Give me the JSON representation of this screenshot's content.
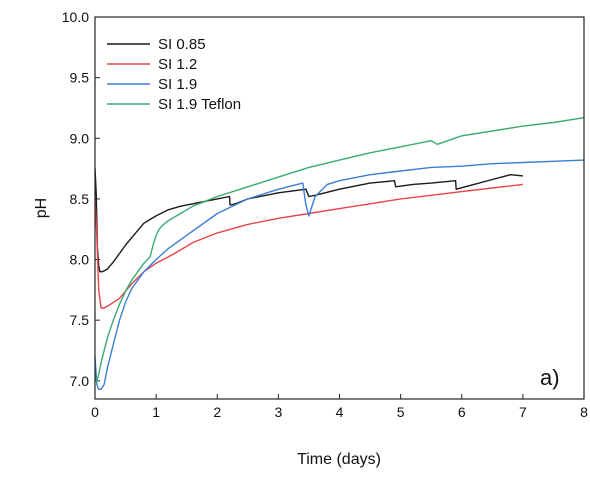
{
  "chart_data": {
    "type": "line",
    "title": "",
    "xlabel": "Time (days)",
    "ylabel": "pH",
    "xlim": [
      0,
      8
    ],
    "ylim": [
      6.85,
      10.0
    ],
    "x_ticks": [
      "0",
      "1",
      "2",
      "3",
      "4",
      "5",
      "6",
      "7",
      "8"
    ],
    "y_ticks": [
      "7.0",
      "7.5",
      "8.0",
      "8.5",
      "9.0",
      "9.5",
      "10.0"
    ],
    "grid": false,
    "legend_position": "top-left",
    "annotation": "a)",
    "series": [
      {
        "name": "SI 0.85",
        "color": "#1a1a1a",
        "x": [
          0,
          0.02,
          0.04,
          0.06,
          0.08,
          0.12,
          0.2,
          0.3,
          0.4,
          0.5,
          0.6,
          0.7,
          0.8,
          0.9,
          1.0,
          1.2,
          1.4,
          1.6,
          1.8,
          2.0,
          2.2,
          2.21,
          2.3,
          2.5,
          3.0,
          3.45,
          3.5,
          3.6,
          4.0,
          4.5,
          4.9,
          4.92,
          5.2,
          5.5,
          5.9,
          5.91,
          6.2,
          6.5,
          6.8,
          7.0
        ],
        "y": [
          8.75,
          8.55,
          8.1,
          7.95,
          7.9,
          7.9,
          7.92,
          7.98,
          8.05,
          8.12,
          8.18,
          8.24,
          8.3,
          8.33,
          8.36,
          8.41,
          8.44,
          8.46,
          8.48,
          8.5,
          8.52,
          8.45,
          8.46,
          8.5,
          8.55,
          8.58,
          8.52,
          8.53,
          8.58,
          8.63,
          8.65,
          8.6,
          8.62,
          8.63,
          8.65,
          8.58,
          8.62,
          8.66,
          8.7,
          8.69
        ]
      },
      {
        "name": "SI 1.2",
        "color": "#e8454a",
        "x": [
          0,
          0.03,
          0.06,
          0.1,
          0.15,
          0.25,
          0.4,
          0.6,
          0.8,
          1.0,
          1.3,
          1.6,
          2.0,
          2.5,
          3.0,
          3.5,
          4.0,
          4.5,
          5.0,
          5.5,
          6.0,
          6.5,
          7.0
        ],
        "y": [
          8.5,
          8.2,
          7.75,
          7.6,
          7.6,
          7.63,
          7.68,
          7.8,
          7.9,
          7.97,
          8.05,
          8.14,
          8.22,
          8.29,
          8.34,
          8.38,
          8.42,
          8.46,
          8.5,
          8.53,
          8.56,
          8.59,
          8.62
        ]
      },
      {
        "name": "SI 1.9",
        "color": "#3b7fd4",
        "x": [
          0,
          0.03,
          0.06,
          0.1,
          0.15,
          0.2,
          0.3,
          0.4,
          0.5,
          0.6,
          0.8,
          1.0,
          1.2,
          1.5,
          2.0,
          2.5,
          3.0,
          3.4,
          3.45,
          3.5,
          3.6,
          3.8,
          4.0,
          4.5,
          5.0,
          5.5,
          6.0,
          6.5,
          7.0,
          7.5,
          8.0
        ],
        "y": [
          7.2,
          6.97,
          6.93,
          6.93,
          6.97,
          7.1,
          7.3,
          7.5,
          7.65,
          7.76,
          7.9,
          8.0,
          8.09,
          8.2,
          8.38,
          8.5,
          8.58,
          8.63,
          8.45,
          8.36,
          8.52,
          8.62,
          8.65,
          8.7,
          8.73,
          8.76,
          8.77,
          8.79,
          8.8,
          8.81,
          8.82
        ]
      },
      {
        "name": "SI 1.9 Teflon",
        "color": "#3aaa73",
        "x": [
          0,
          0.03,
          0.06,
          0.1,
          0.2,
          0.3,
          0.4,
          0.5,
          0.6,
          0.7,
          0.8,
          0.9,
          0.95,
          1.0,
          1.05,
          1.1,
          1.2,
          1.4,
          1.6,
          2.0,
          2.5,
          3.0,
          3.5,
          4.0,
          4.5,
          5.0,
          5.5,
          5.6,
          6.0,
          6.5,
          7.0,
          7.5,
          8.0
        ],
        "y": [
          7.05,
          7.0,
          7.05,
          7.15,
          7.35,
          7.5,
          7.63,
          7.74,
          7.83,
          7.9,
          7.97,
          8.02,
          8.12,
          8.2,
          8.25,
          8.28,
          8.32,
          8.38,
          8.44,
          8.52,
          8.6,
          8.68,
          8.76,
          8.82,
          8.88,
          8.93,
          8.98,
          8.95,
          9.02,
          9.06,
          9.1,
          9.13,
          9.17
        ]
      }
    ]
  }
}
